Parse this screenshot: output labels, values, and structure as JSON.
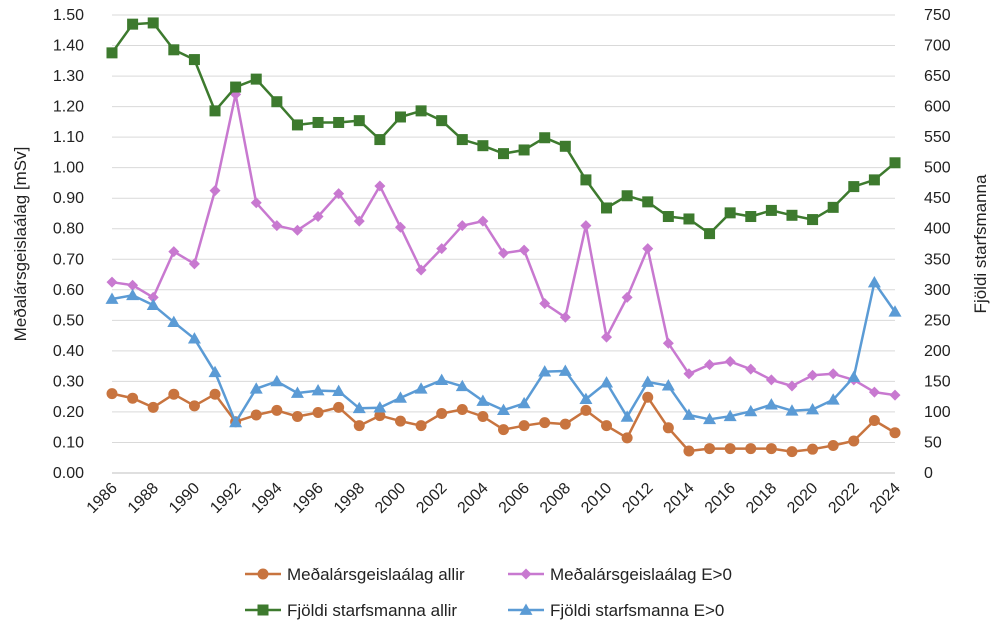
{
  "chart_data": {
    "type": "line",
    "title": "",
    "xlabel": "",
    "ylabel_left": "Meðalársgeislaálag [mSv]",
    "ylabel_right": "Fjöldi starfsmanna",
    "ylim_left": [
      0,
      1.5
    ],
    "ylim_right": [
      0,
      750
    ],
    "yticks_left": [
      "0.00",
      "0.10",
      "0.20",
      "0.30",
      "0.40",
      "0.50",
      "0.60",
      "0.70",
      "0.80",
      "0.90",
      "1.00",
      "1.10",
      "1.20",
      "1.30",
      "1.40",
      "1.50"
    ],
    "yticks_right": [
      "0",
      "50",
      "100",
      "150",
      "200",
      "250",
      "300",
      "350",
      "400",
      "450",
      "500",
      "550",
      "600",
      "650",
      "700",
      "750"
    ],
    "xlim": [
      1986,
      2024
    ],
    "x": [
      1986,
      1987,
      1988,
      1989,
      1990,
      1991,
      1992,
      1993,
      1994,
      1995,
      1996,
      1997,
      1998,
      1999,
      2000,
      2001,
      2002,
      2003,
      2004,
      2005,
      2006,
      2007,
      2008,
      2009,
      2010,
      2011,
      2012,
      2013,
      2014,
      2015,
      2016,
      2017,
      2018,
      2019,
      2020,
      2021,
      2022,
      2023,
      2024
    ],
    "xtick_labels": [
      "1986",
      "1988",
      "1990",
      "1992",
      "1994",
      "1996",
      "1998",
      "2000",
      "2002",
      "2004",
      "2006",
      "2008",
      "2010",
      "2012",
      "2014",
      "2016",
      "2018",
      "2020",
      "2022",
      "2024"
    ],
    "grid": true,
    "legend_position": "bottom",
    "series": [
      {
        "name": "Meðalársgeislaálag allir",
        "axis": "left",
        "color": "#C8743F",
        "marker": "circle",
        "values": [
          0.26,
          0.245,
          0.215,
          0.258,
          0.22,
          0.258,
          0.168,
          0.19,
          0.205,
          0.185,
          0.198,
          0.215,
          0.155,
          0.188,
          0.17,
          0.155,
          0.195,
          0.208,
          0.185,
          0.142,
          0.155,
          0.165,
          0.16,
          0.205,
          0.155,
          0.115,
          0.248,
          0.148,
          0.072,
          0.08,
          0.08,
          0.08,
          0.08,
          0.07,
          0.078,
          0.09,
          0.105,
          0.172,
          0.132
        ]
      },
      {
        "name": "Meðalársgeislaálag E>0",
        "axis": "left",
        "color": "#C879D0",
        "marker": "diamond",
        "values": [
          0.625,
          0.615,
          0.575,
          0.725,
          0.685,
          0.925,
          1.24,
          0.885,
          0.81,
          0.795,
          0.84,
          0.915,
          0.825,
          0.94,
          0.805,
          0.665,
          0.735,
          0.81,
          0.825,
          0.72,
          0.73,
          0.555,
          0.51,
          0.81,
          0.445,
          0.575,
          0.735,
          0.425,
          0.325,
          0.355,
          0.365,
          0.34,
          0.305,
          0.285,
          0.32,
          0.325,
          0.305,
          0.265,
          0.255
        ]
      },
      {
        "name": "Fjöldi starfsmanna allir",
        "axis": "right",
        "color": "#3D7A2E",
        "marker": "square",
        "values": [
          688,
          735,
          737,
          693,
          677,
          593,
          632,
          645,
          608,
          570,
          574,
          574,
          577,
          546,
          583,
          593,
          577,
          546,
          536,
          523,
          529,
          549,
          535,
          480,
          434,
          454,
          444,
          420,
          416,
          392,
          426,
          420,
          430,
          422,
          415,
          435,
          469,
          480,
          508
        ]
      },
      {
        "name": "Fjöldi starfsmanna E>0",
        "axis": "right",
        "color": "#5B9BD5",
        "marker": "triangle",
        "values": [
          285,
          291,
          275,
          247,
          220,
          165,
          83,
          138,
          150,
          131,
          135,
          134,
          106,
          107,
          123,
          138,
          152,
          142,
          118,
          103,
          114,
          166,
          167,
          121,
          148,
          92,
          149,
          143,
          95,
          88,
          93,
          101,
          112,
          102,
          104,
          120,
          157,
          312,
          264
        ]
      }
    ]
  }
}
